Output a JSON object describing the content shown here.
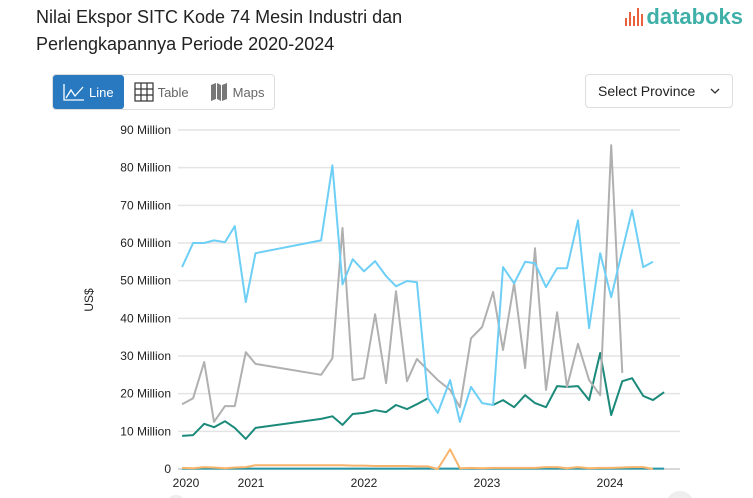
{
  "header": {
    "title": "Nilai Ekspor SITC Kode 74 Mesin Industri dan Perlengkapannya Periode 2020-2024",
    "logo_text": "databoks"
  },
  "tabs": [
    {
      "label": "Line",
      "icon": "line-chart-icon",
      "active": true
    },
    {
      "label": "Table",
      "icon": "table-icon",
      "active": false
    },
    {
      "label": "Maps",
      "icon": "map-icon",
      "active": false
    }
  ],
  "province_select": {
    "value": "Select Province",
    "icon": "chevron-down-icon"
  },
  "colors": {
    "accent": "#2979c1",
    "logo": "#3fb0a8"
  },
  "chart_data": {
    "type": "line",
    "title": "Nilai Ekspor SITC Kode 74 Mesin Industri dan Perlengkapannya Periode 2020-2024",
    "ylabel": "US$",
    "ylim": [
      0,
      90
    ],
    "yticks": [
      "0",
      "10 Million",
      "20 Million",
      "30 Million",
      "40 Million",
      "50 Million",
      "60 Million",
      "70 Million",
      "80 Million",
      "90 Million"
    ],
    "xticks": [
      "2020",
      "2021",
      "2022",
      "2023",
      "2024"
    ],
    "grid": true,
    "x": [
      2019.94,
      2020.11,
      2020.28,
      2020.43,
      2020.6,
      2020.75,
      2020.92,
      2021.04,
      2021.62,
      2021.72,
      2021.81,
      2021.9,
      2022.0,
      2022.09,
      2022.18,
      2022.26,
      2022.35,
      2022.43,
      2022.52,
      2022.6,
      2022.7,
      2022.78,
      2022.87,
      2022.96,
      2023.05,
      2023.13,
      2023.22,
      2023.31,
      2023.39,
      2023.48,
      2023.57,
      2023.65,
      2023.74,
      2023.83,
      2023.92,
      2024.01,
      2024.1,
      2024.18,
      2024.27,
      2024.35,
      2024.44
    ],
    "series": [
      {
        "color": "#6dcff6",
        "values": [
          53.6,
          60,
          60,
          60.7,
          60.2,
          64.5,
          44.3,
          57.3,
          60.7,
          80.6,
          49,
          55.7,
          52.5,
          55.2,
          51.2,
          48.5,
          49.9,
          49.6,
          18.8,
          14.9,
          23.6,
          12.5,
          21.8,
          17.5,
          17,
          53.6,
          49.3,
          55,
          54.6,
          48.3,
          53.3,
          53.3,
          66,
          37.4,
          57.3,
          45.6,
          58,
          68.7,
          53.6,
          55,
          null
        ]
      },
      {
        "color": "#b0b0b0",
        "values": [
          17.2,
          18.8,
          28.4,
          12.5,
          16.7,
          16.7,
          31,
          27.9,
          25,
          29.4,
          64,
          23.6,
          24.1,
          41.1,
          22.8,
          47.2,
          23.3,
          29.2,
          26.2,
          23.6,
          21,
          16.4,
          34.7,
          37.7,
          47,
          31.6,
          49.3,
          26.8,
          58.6,
          21,
          41.6,
          21.8,
          33.2,
          23.6,
          19.6,
          86,
          25.5,
          null,
          null,
          null,
          null
        ]
      },
      {
        "color": "#1b8a7a",
        "values": [
          8.8,
          9,
          12,
          11.1,
          12.7,
          10.9,
          8,
          10.9,
          13.3,
          14,
          11.7,
          14.6,
          14.9,
          15.6,
          15.1,
          17,
          15.9,
          17.2,
          18.8,
          null,
          null,
          null,
          null,
          null,
          17,
          18.3,
          16.4,
          19.6,
          17.5,
          16.4,
          22,
          21.8,
          22,
          18.3,
          30.8,
          14.3,
          23.3,
          24.1,
          19.4,
          18.3,
          20.4
        ]
      },
      {
        "color": "#f9b46b",
        "values": [
          0.3,
          0.2,
          0.5,
          0.4,
          0.2,
          0.4,
          0.5,
          1,
          1,
          1,
          1,
          0.9,
          0.9,
          0.8,
          0.8,
          0.8,
          0.8,
          0.7,
          0.7,
          0,
          5.2,
          0.2,
          0.3,
          0.2,
          0.3,
          0.3,
          0.3,
          0.3,
          0.3,
          0.5,
          0.5,
          0.2,
          0.5,
          0.2,
          0.3,
          0.3,
          0.4,
          0.5,
          0.5,
          0,
          null
        ]
      },
      {
        "color": "#2596a8",
        "values": [
          0.1,
          0.1,
          0.1,
          0.1,
          0.1,
          0.1,
          0.1,
          0.1,
          0.1,
          0.1,
          0.1,
          0.1,
          0.1,
          0.1,
          0.1,
          0.1,
          0.1,
          0.1,
          0.1,
          0.1,
          0.1,
          0.1,
          0.1,
          0.1,
          0.1,
          0.1,
          0.1,
          0.1,
          0.1,
          0.1,
          0.1,
          0.1,
          0.1,
          0.1,
          0.1,
          0.1,
          0.1,
          0.1,
          0.1,
          0.1,
          0.1
        ]
      }
    ]
  }
}
